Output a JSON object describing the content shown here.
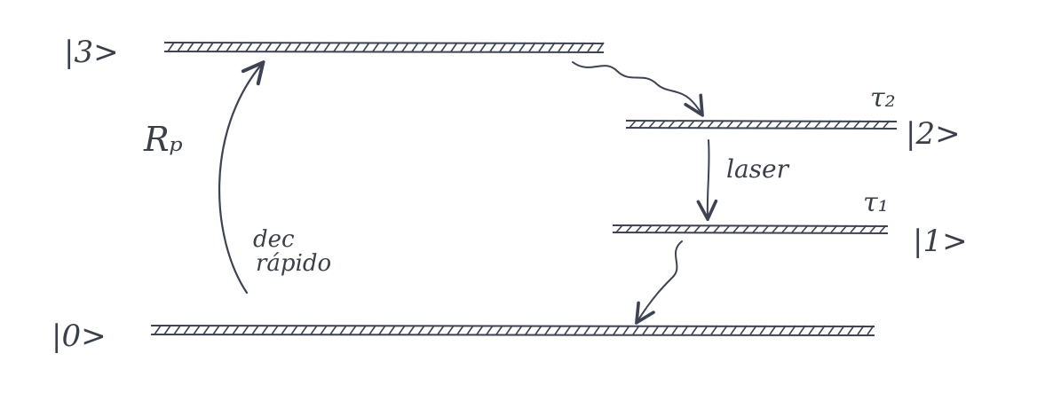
{
  "levels": {
    "level3": {
      "label": "|3>"
    },
    "level2": {
      "label": "|2>",
      "lifetime": "τ₂"
    },
    "level1": {
      "label": "|1>",
      "lifetime": "τ₁"
    },
    "level0": {
      "label": "|0>"
    }
  },
  "transitions": {
    "pump": {
      "label": "Rₚ"
    },
    "laser": {
      "label": "laser"
    },
    "fast_decay": {
      "line1": "dec",
      "line2": "rápido"
    }
  },
  "colors": {
    "ink": "#3d4352",
    "paper": "#ffffff"
  }
}
